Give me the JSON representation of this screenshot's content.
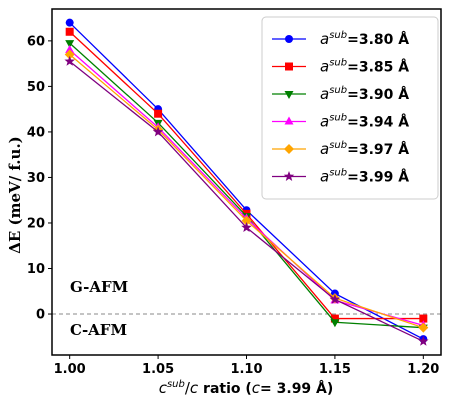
{
  "chart_data": {
    "type": "line",
    "x": [
      1.0,
      1.05,
      1.1,
      1.15,
      1.2
    ],
    "x_tick_labels": [
      "1.00",
      "1.05",
      "1.10",
      "1.15",
      "1.20"
    ],
    "y_ticks": [
      0,
      10,
      20,
      30,
      40,
      50,
      60
    ],
    "xlim": [
      0.99,
      1.21
    ],
    "ylim": [
      -9,
      67
    ],
    "xlabel": {
      "sym1": "c",
      "sup": "sub",
      "slash": "/",
      "sym2": "c",
      "rest": " ratio (",
      "sym3": "c",
      "eq": "= 3.99 Å)"
    },
    "ylabel": "ΔE (meV/ f.u.)",
    "reference_line": {
      "y": 0,
      "style": "dashed",
      "color": "#888888"
    },
    "annotations": {
      "above": "G-AFM",
      "below": "C-AFM"
    },
    "legend_position": "upper-right",
    "series": [
      {
        "name": {
          "sym": "a",
          "sup": "sub",
          "val": "=3.80 Å"
        },
        "color": "#0000ff",
        "marker": "circle",
        "values": [
          64,
          45,
          22.8,
          4.5,
          -5.5
        ]
      },
      {
        "name": {
          "sym": "a",
          "sup": "sub",
          "val": "=3.85 Å"
        },
        "color": "#ff0000",
        "marker": "square",
        "values": [
          62,
          44,
          22,
          -1,
          -1
        ]
      },
      {
        "name": {
          "sym": "a",
          "sup": "sub",
          "val": "=3.90 Å"
        },
        "color": "#008000",
        "marker": "triangle-down",
        "values": [
          59.5,
          42,
          21.5,
          -1.8,
          -3
        ]
      },
      {
        "name": {
          "sym": "a",
          "sup": "sub",
          "val": "=3.94 Å"
        },
        "color": "#ff00ff",
        "marker": "triangle-up",
        "values": [
          58,
          41,
          21,
          3,
          -2.5
        ]
      },
      {
        "name": {
          "sym": "a",
          "sup": "sub",
          "val": "=3.97 Å"
        },
        "color": "#ffa500",
        "marker": "diamond",
        "values": [
          57,
          40.5,
          20.5,
          3.5,
          -3
        ]
      },
      {
        "name": {
          "sym": "a",
          "sup": "sub",
          "val": "=3.99 Å"
        },
        "color": "#800080",
        "marker": "star",
        "values": [
          55.5,
          40,
          19,
          3.2,
          -6
        ]
      }
    ]
  }
}
